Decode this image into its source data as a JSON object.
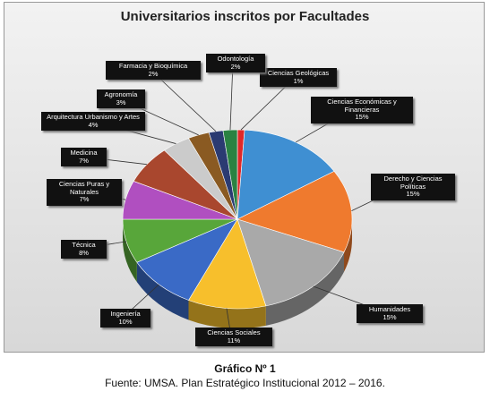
{
  "chart_data": {
    "type": "pie",
    "title": "Universitarios inscritos por Facultades",
    "categories": [
      "Ciencias Geológicas",
      "Ciencias Económicas y Financieras",
      "Derecho y Ciencias Políticas",
      "Humanidades",
      "Ciencias Sociales",
      "Ingeniería",
      "Técnica",
      "Ciencias Puras y Naturales",
      "Medicina",
      "Arquitectura Urbanismo y Artes",
      "Agronomía",
      "Farmacia y Bioquímica",
      "Odontología"
    ],
    "values": [
      1,
      15,
      15,
      15,
      11,
      10,
      8,
      7,
      7,
      4,
      3,
      2,
      2
    ],
    "value_labels": [
      "1%",
      "15%",
      "15%",
      "15%",
      "11%",
      "10%",
      "8%",
      "7%",
      "7%",
      "4%",
      "3%",
      "2%",
      "2%"
    ],
    "colors": [
      "#e02828",
      "#3f8fd2",
      "#ef7a2e",
      "#a9a9a9",
      "#f7bf2c",
      "#3a6ac6",
      "#58a63a",
      "#b04fc0",
      "#a9472e",
      "#cbcbcb",
      "#8a5a22",
      "#2b3b72",
      "#2a8242"
    ]
  },
  "figure_caption": "Gráfico Nº 1",
  "source": "Fuente: UMSA. Plan Estratégico Institucional 2012 – 2016."
}
